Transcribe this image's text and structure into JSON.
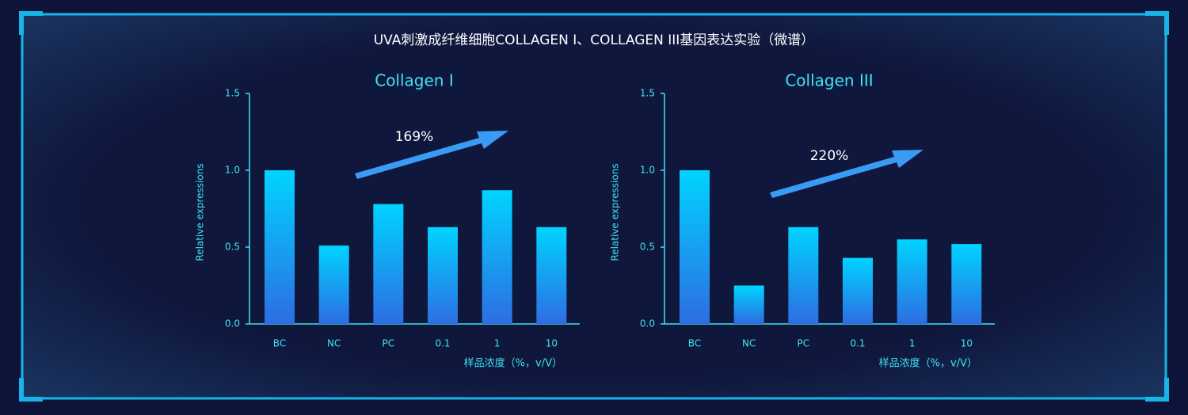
{
  "title": "UVA刺激成纤维细胞COLLAGEN I、COLLAGEN III基因表达实验（微谱）",
  "chart_data": [
    {
      "type": "bar",
      "title": "Collagen I",
      "y_label": "Relative expressions",
      "x_label": "样品浓度（%，v/V）",
      "categories": [
        "BC",
        "NC",
        "PC",
        "0.1",
        "1",
        "10"
      ],
      "values": [
        1.0,
        0.51,
        0.78,
        0.63,
        0.87,
        0.63
      ],
      "color": "#00d4ff",
      "ylim": [
        0,
        1.5
      ],
      "yticks": [
        {
          "value": 0,
          "label": "0.0"
        },
        0.5,
        {
          "value": 1,
          "label": "1.0"
        },
        1.5
      ],
      "annotation": "169%"
    },
    {
      "type": "bar",
      "title": "Collagen III",
      "y_label": "Relative expressions",
      "x_label": "样品浓度（%，v/V）",
      "categories": [
        "BC",
        "NC",
        "PC",
        "0.1",
        "1",
        "10"
      ],
      "values": [
        1.0,
        0.25,
        0.63,
        0.43,
        0.55,
        0.52
      ],
      "color": "#00d4ff",
      "ylim": [
        0,
        1.5
      ],
      "yticks": [
        {
          "value": 0,
          "label": "0.0"
        },
        0.5,
        {
          "value": 1,
          "label": "1.0"
        },
        1.5
      ],
      "annotation": "220%"
    }
  ]
}
